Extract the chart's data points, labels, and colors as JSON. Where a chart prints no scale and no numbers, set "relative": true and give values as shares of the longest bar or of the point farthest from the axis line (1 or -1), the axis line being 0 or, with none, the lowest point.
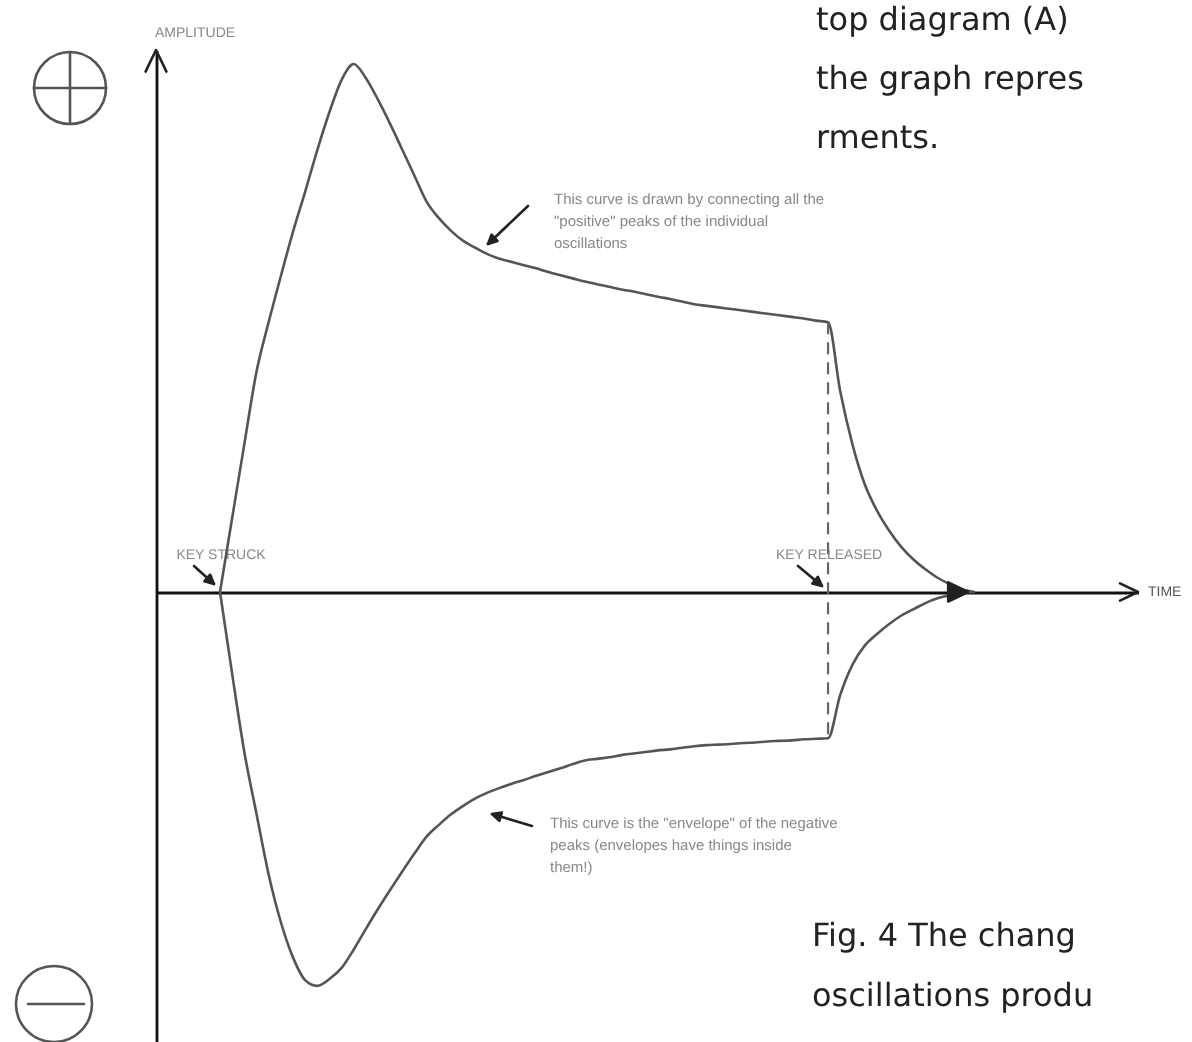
{
  "chart_data": {
    "type": "line",
    "relative": true,
    "ylabel": "AMPLITUDE",
    "categories": [
      "KEY STRUCK",
      null,
      null,
      null,
      null,
      null,
      null,
      null,
      null,
      null,
      null,
      null,
      null,
      null,
      null,
      null,
      null,
      null,
      null,
      null,
      null,
      null,
      null,
      null,
      null,
      null,
      null,
      null,
      null,
      null,
      null,
      null,
      null,
      null,
      null,
      null,
      null,
      null,
      null,
      null,
      null,
      null,
      null,
      null,
      null,
      null,
      null,
      null,
      null,
      null,
      "KEY RELEASED",
      null,
      null,
      null,
      null,
      null,
      null,
      null,
      null,
      null,
      null,
      null,
      null
    ],
    "series": [
      {
        "color": "#555555",
        "values": [
          0,
          0.14,
          0.28,
          0.417,
          0.511,
          0.598,
          0.682,
          0.758,
          0.837,
          0.909,
          0.97,
          1,
          0.973,
          0.932,
          0.886,
          0.837,
          0.788,
          0.739,
          0.708,
          0.684,
          0.665,
          0.652,
          0.64,
          0.631,
          0.625,
          0.619,
          0.613,
          0.606,
          0.6,
          0.594,
          0.588,
          0.583,
          0.578,
          0.573,
          0.569,
          0.564,
          0.559,
          0.555,
          0.55,
          0.545,
          0.542,
          0.539,
          0.536,
          0.533,
          0.53,
          0.527,
          0.524,
          0.521,
          0.518,
          0.514,
          0.511,
          0.38,
          0.28,
          0.205,
          0.155,
          0.117,
          0.086,
          0.062,
          0.043,
          0.027,
          0.015,
          0.005,
          0
        ]
      },
      {
        "color": "#555555",
        "values": [
          0,
          -0.155,
          -0.303,
          -0.42,
          -0.535,
          -0.625,
          -0.692,
          -0.735,
          -0.746,
          -0.733,
          -0.712,
          -0.677,
          -0.638,
          -0.6,
          -0.564,
          -0.529,
          -0.495,
          -0.463,
          -0.441,
          -0.421,
          -0.405,
          -0.391,
          -0.38,
          -0.371,
          -0.363,
          -0.356,
          -0.348,
          -0.341,
          -0.334,
          -0.326,
          -0.319,
          -0.316,
          -0.313,
          -0.309,
          -0.306,
          -0.303,
          -0.3,
          -0.298,
          -0.295,
          -0.292,
          -0.29,
          -0.289,
          -0.288,
          -0.286,
          -0.285,
          -0.283,
          -0.282,
          -0.281,
          -0.279,
          -0.278,
          -0.277,
          -0.195,
          -0.138,
          -0.102,
          -0.08,
          -0.061,
          -0.045,
          -0.033,
          -0.021,
          -0.012,
          -0.006,
          -0.002,
          0
        ]
      }
    ],
    "ref_lines": [
      {
        "axis": "x",
        "value": "KEY RELEASED",
        "line_style": "dashed",
        "color": "#666666"
      }
    ],
    "annotations": [
      "top diagram (A)\nthe graph repres\nrments.",
      "This curve is drawn by connecting all the\n\"positive\" peaks of the individual\noscillations",
      "This curve is the \"envelope\" of the negative\npeaks (envelopes have things inside\nthem!)",
      "Fig. 4 The chang\noscillations produ",
      "TIME"
    ]
  }
}
